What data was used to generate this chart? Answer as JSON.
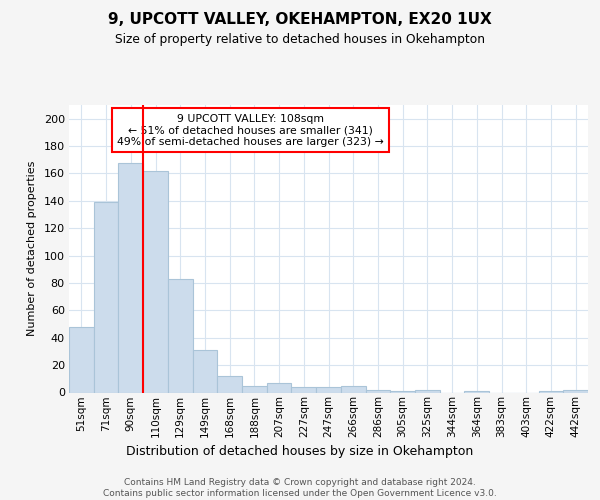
{
  "title": "9, UPCOTT VALLEY, OKEHAMPTON, EX20 1UX",
  "subtitle": "Size of property relative to detached houses in Okehampton",
  "xlabel": "Distribution of detached houses by size in Okehampton",
  "ylabel": "Number of detached properties",
  "categories": [
    "51sqm",
    "71sqm",
    "90sqm",
    "110sqm",
    "129sqm",
    "149sqm",
    "168sqm",
    "188sqm",
    "207sqm",
    "227sqm",
    "247sqm",
    "266sqm",
    "286sqm",
    "305sqm",
    "325sqm",
    "344sqm",
    "364sqm",
    "383sqm",
    "403sqm",
    "422sqm",
    "442sqm"
  ],
  "values": [
    48,
    139,
    168,
    162,
    83,
    31,
    12,
    5,
    7,
    4,
    4,
    5,
    2,
    1,
    2,
    0,
    1,
    0,
    0,
    1,
    2
  ],
  "bar_color": "#ccdcec",
  "bar_edge_color": "#aac4d8",
  "property_label": "9 UPCOTT VALLEY: 108sqm",
  "annotation_line1": "← 51% of detached houses are smaller (341)",
  "annotation_line2": "49% of semi-detached houses are larger (323) →",
  "ylim": [
    0,
    210
  ],
  "yticks": [
    0,
    20,
    40,
    60,
    80,
    100,
    120,
    140,
    160,
    180,
    200
  ],
  "fig_bg_color": "#f5f5f5",
  "plot_bg_color": "#ffffff",
  "grid_color": "#d8e4f0",
  "footer_line1": "Contains HM Land Registry data © Crown copyright and database right 2024.",
  "footer_line2": "Contains public sector information licensed under the Open Government Licence v3.0."
}
